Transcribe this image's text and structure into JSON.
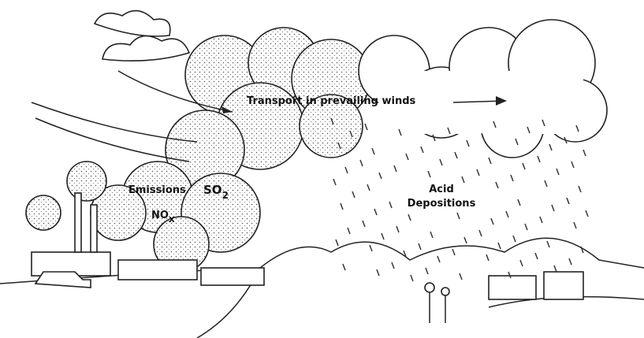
{
  "labels": {
    "transport": "Transport in prevailing winds",
    "emissions": "Emissions",
    "so2": {
      "base": "SO",
      "sub": "2"
    },
    "nox": {
      "base": "NO",
      "sub": "X"
    },
    "acid_depositions": [
      "Acid",
      "Depositions"
    ]
  }
}
